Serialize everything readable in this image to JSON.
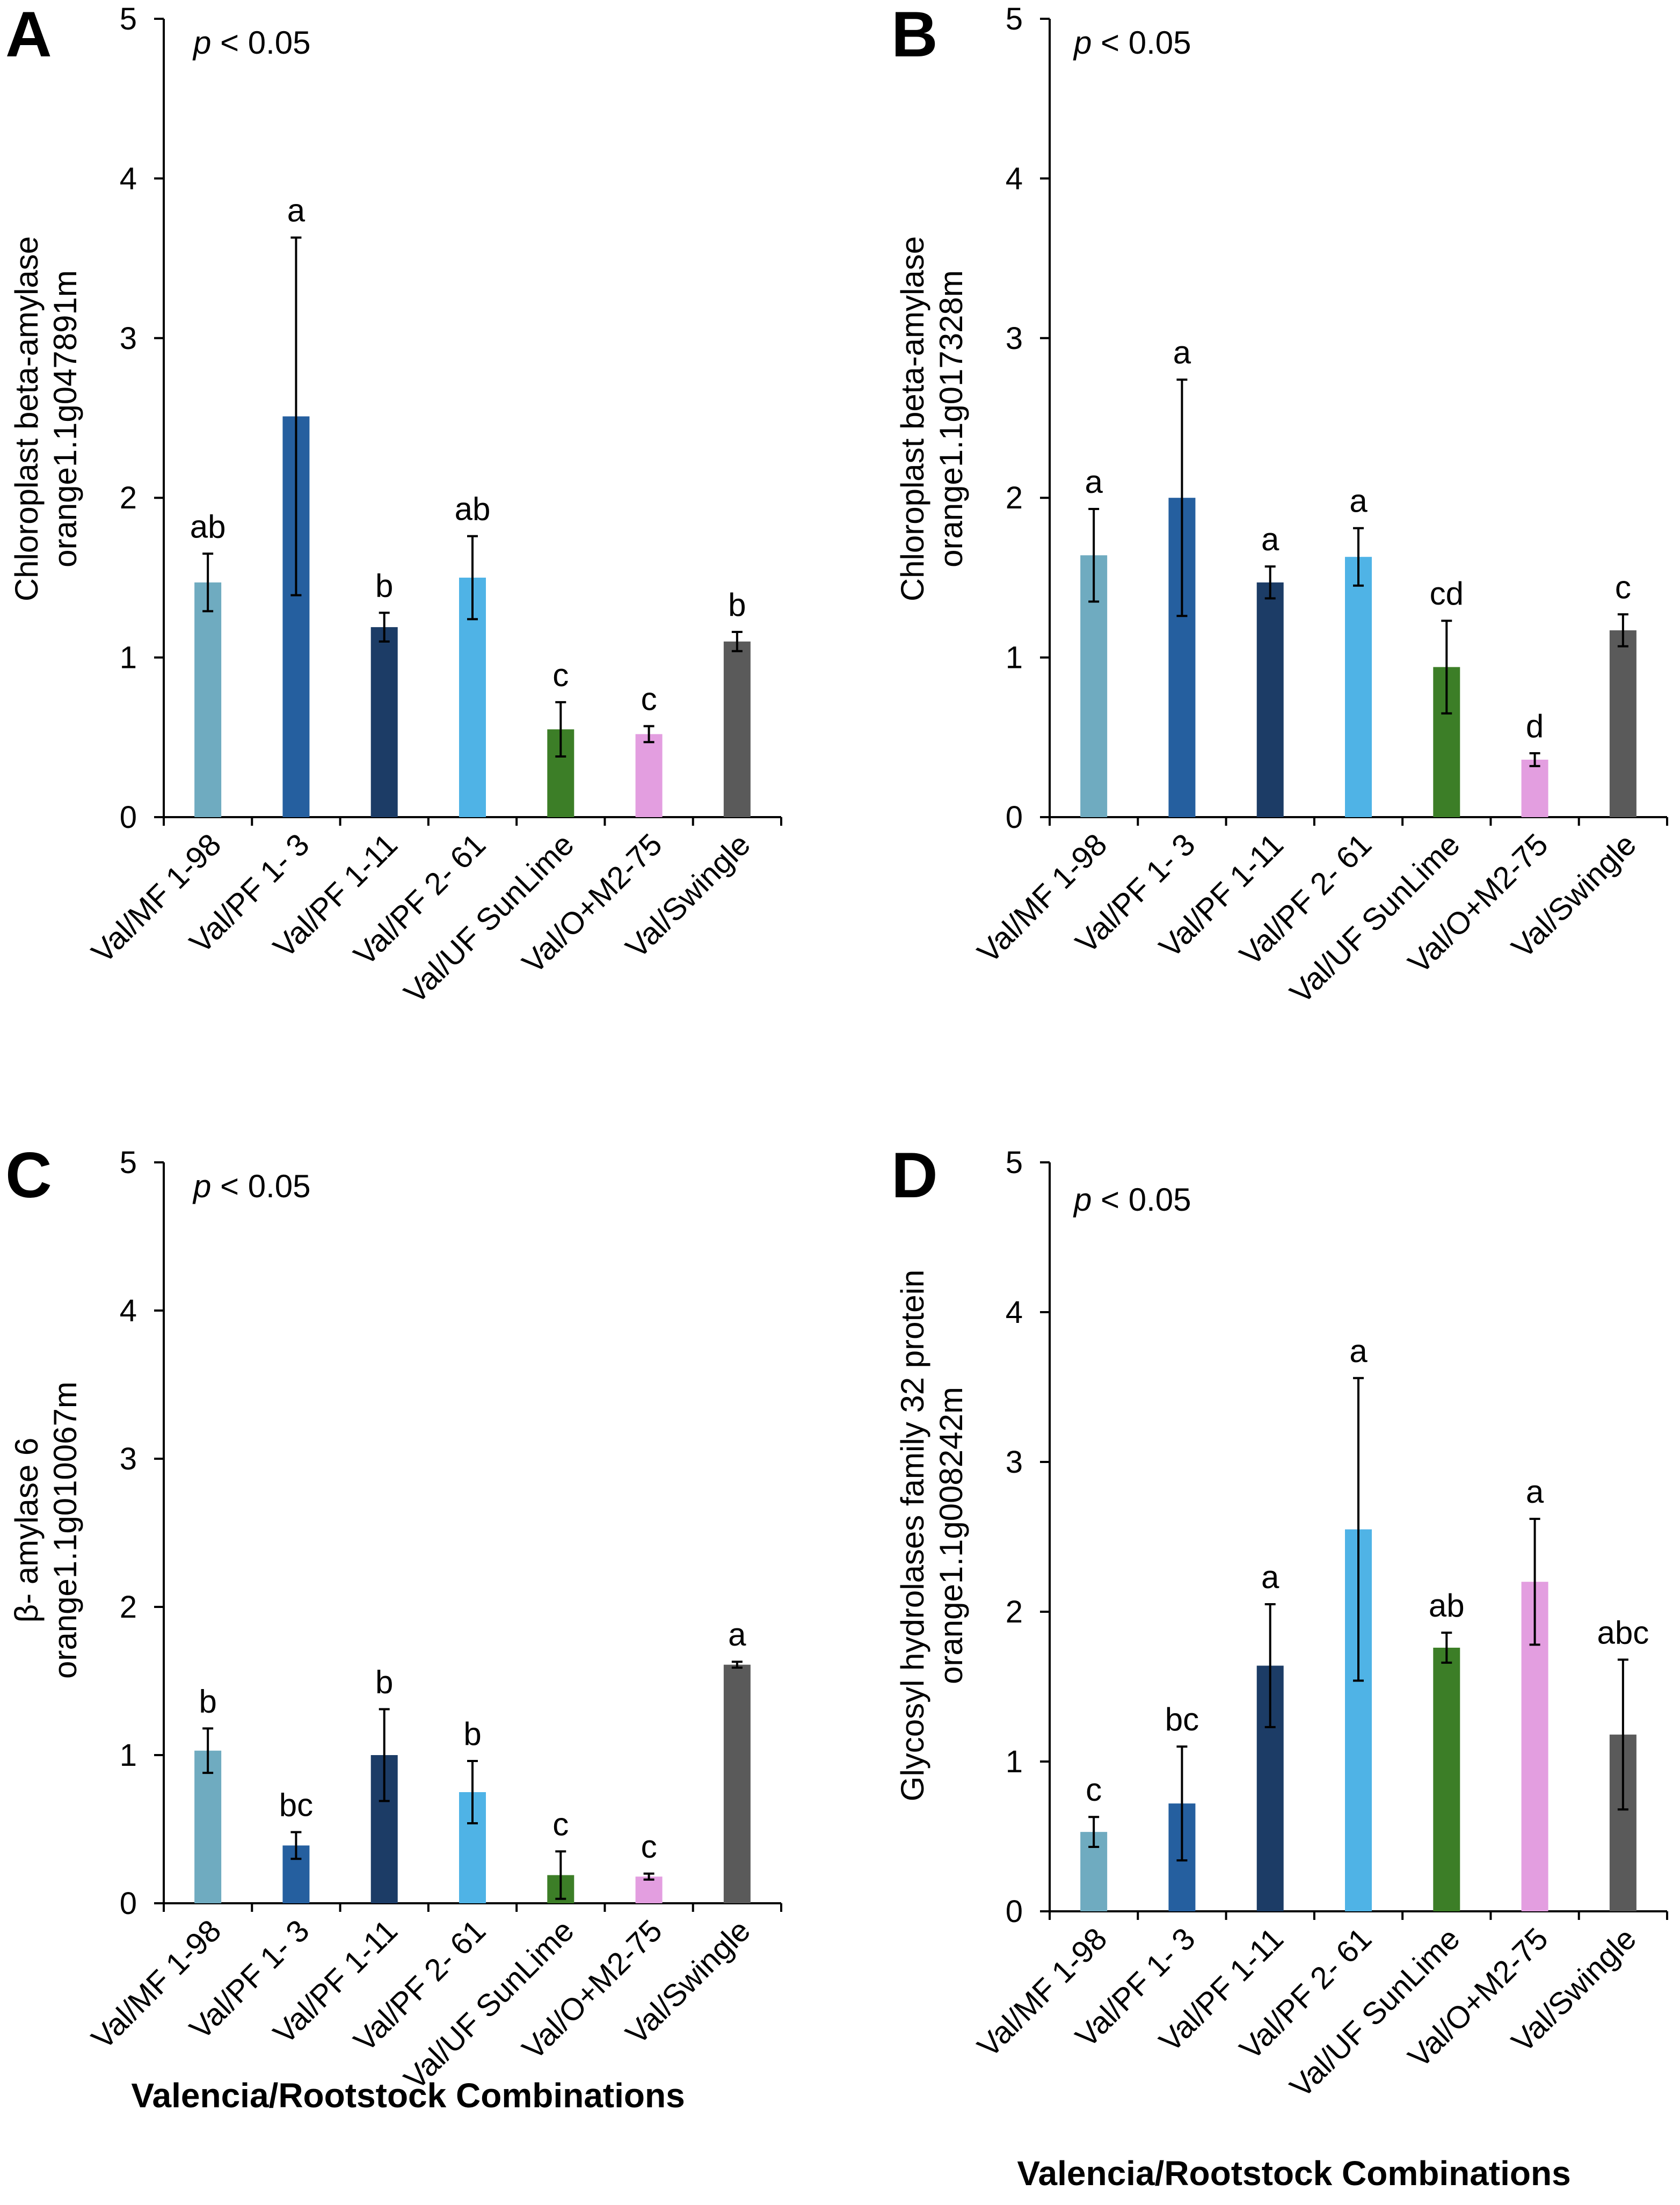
{
  "x_axis_title": "Valencia/Rootstock Combinations",
  "colors": {
    "Val/MF 1-98": "#6fabc0",
    "Val/PF 1- 3": "#255f9f",
    "Val/PF 1-11": "#1c3c66",
    "Val/PF 2- 61": "#4fb3e6",
    "Val/UF SunLime": "#3c7e27",
    "Val/O+M2-75": "#e39ee0",
    "Val/Swingle": "#5a5a5a"
  },
  "chart_data": [
    {
      "type": "bar",
      "panel": "A",
      "title": "",
      "annotation": {
        "italic": "p",
        "rest": " < 0.05"
      },
      "ylabel_lines": [
        "Chloroplast beta-amylase",
        "orange1.1g047891m"
      ],
      "xlabel": "",
      "ylim": [
        0,
        5
      ],
      "yticks": [
        0,
        1,
        2,
        3,
        4,
        5
      ],
      "categories": [
        "Val/MF 1-98",
        "Val/PF 1- 3",
        "Val/PF 1-11",
        "Val/PF 2- 61",
        "Val/UF SunLime",
        "Val/O+M2-75",
        "Val/Swingle"
      ],
      "values": [
        1.47,
        2.51,
        1.19,
        1.5,
        0.55,
        0.52,
        1.1
      ],
      "errors": [
        0.18,
        1.12,
        0.09,
        0.26,
        0.17,
        0.05,
        0.06
      ],
      "significance": [
        "ab",
        "a",
        "b",
        "ab",
        "c",
        "c",
        "b"
      ]
    },
    {
      "type": "bar",
      "panel": "B",
      "title": "",
      "annotation": {
        "italic": "p",
        "rest": " < 0.05"
      },
      "ylabel_lines": [
        "Chloroplast beta-amylase",
        "orange1.1g017328m"
      ],
      "xlabel": "",
      "ylim": [
        0,
        5
      ],
      "yticks": [
        0,
        1,
        2,
        3,
        4,
        5
      ],
      "categories": [
        "Val/MF 1-98",
        "Val/PF 1- 3",
        "Val/PF 1-11",
        "Val/PF 2- 61",
        "Val/UF SunLime",
        "Val/O+M2-75",
        "Val/Swingle"
      ],
      "values": [
        1.64,
        2.0,
        1.47,
        1.63,
        0.94,
        0.36,
        1.17
      ],
      "errors": [
        0.29,
        0.74,
        0.1,
        0.18,
        0.29,
        0.04,
        0.1
      ],
      "significance": [
        "a",
        "a",
        "a",
        "a",
        "cd",
        "d",
        "c"
      ]
    },
    {
      "type": "bar",
      "panel": "C",
      "title": "",
      "annotation": {
        "italic": "p",
        "rest": " < 0.05"
      },
      "ylabel_lines": [
        "β- amylase 6",
        "orange1.1g010067m"
      ],
      "xlabel": "Valencia/Rootstock Combinations",
      "ylim": [
        0,
        5
      ],
      "yticks": [
        0,
        1,
        2,
        3,
        4,
        5
      ],
      "categories": [
        "Val/MF 1-98",
        "Val/PF 1- 3",
        "Val/PF 1-11",
        "Val/PF 2- 61",
        "Val/UF SunLime",
        "Val/O+M2-75",
        "Val/Swingle"
      ],
      "values": [
        1.03,
        0.39,
        1.0,
        0.75,
        0.19,
        0.18,
        1.61
      ],
      "errors": [
        0.15,
        0.09,
        0.31,
        0.21,
        0.16,
        0.02,
        0.02
      ],
      "significance": [
        "b",
        "bc",
        "b",
        "b",
        "c",
        "c",
        "a"
      ]
    },
    {
      "type": "bar",
      "panel": "D",
      "title": "",
      "annotation": {
        "italic": "p",
        "rest": " < 0.05"
      },
      "ylabel_lines": [
        "Glycosyl hydrolases family 32 protein",
        "orange1.1g008242m"
      ],
      "xlabel": "Valencia/Rootstock Combinations",
      "ylim": [
        0,
        5
      ],
      "yticks": [
        0,
        1,
        2,
        3,
        4,
        5
      ],
      "categories": [
        "Val/MF 1-98",
        "Val/PF 1- 3",
        "Val/PF 1-11",
        "Val/PF 2- 61",
        "Val/UF SunLime",
        "Val/O+M2-75",
        "Val/Swingle"
      ],
      "values": [
        0.53,
        0.72,
        1.64,
        2.55,
        1.76,
        2.2,
        1.18
      ],
      "errors": [
        0.1,
        0.38,
        0.41,
        1.01,
        0.1,
        0.42,
        0.5
      ],
      "significance": [
        "c",
        "bc",
        "a",
        "a",
        "ab",
        "a",
        "abc"
      ]
    }
  ]
}
